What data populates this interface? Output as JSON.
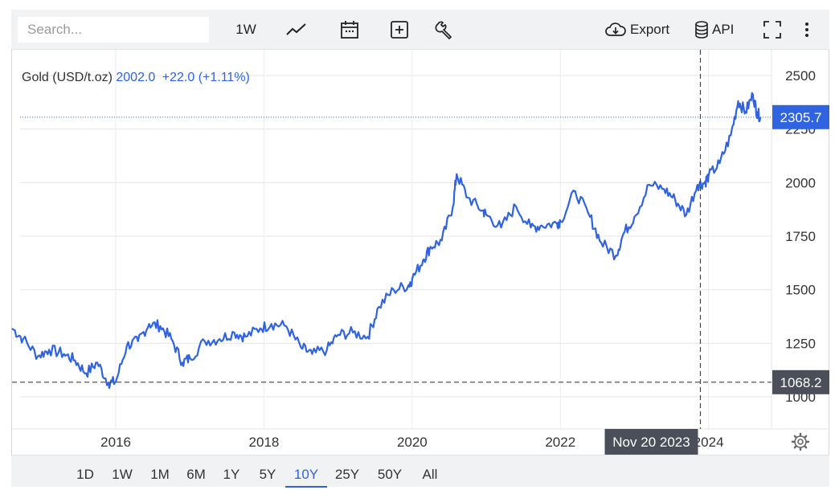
{
  "toolbar": {
    "search_placeholder": "Search...",
    "interval_label": "1W",
    "export_label": "Export",
    "api_label": "API",
    "icons": [
      "line-chart-icon",
      "calendar-icon",
      "plus-box-icon",
      "wrench-icon",
      "cloud-download-icon",
      "database-icon",
      "fullscreen-icon",
      "more-vertical-icon"
    ]
  },
  "legend": {
    "name": "Gold (USD/t.oz)",
    "value": "2002.0",
    "change": "+22.0 (+1.11%)"
  },
  "crosshair": {
    "date_label": "Nov 20 2023",
    "price_label": "1068.2"
  },
  "last_price_label": "2305.7",
  "range_buttons": [
    "1D",
    "1W",
    "1M",
    "6M",
    "1Y",
    "5Y",
    "10Y",
    "25Y",
    "50Y",
    "All"
  ],
  "active_range": "10Y",
  "colors": {
    "line": "#2f63e0",
    "accent": "#2f63e0",
    "crosshair_label_bg": "#4a4f59"
  },
  "chart_data": {
    "type": "line",
    "title": "Gold (USD/t.oz)",
    "xlabel": "",
    "ylabel": "",
    "x_ticks": [
      "2016",
      "2018",
      "2020",
      "2022",
      "2024"
    ],
    "y_ticks": [
      1000,
      1250,
      1500,
      1750,
      2000,
      2250,
      2500
    ],
    "ylim": [
      850,
      2620
    ],
    "xlim": [
      2014.6,
      2024.85
    ],
    "grid": true,
    "series": [
      {
        "name": "Gold (USD/t.oz)",
        "x": [
          2014.6,
          2014.75,
          2014.95,
          2015.1,
          2015.3,
          2015.45,
          2015.6,
          2015.75,
          2015.9,
          2016.0,
          2016.15,
          2016.3,
          2016.45,
          2016.6,
          2016.75,
          2016.9,
          2017.0,
          2017.2,
          2017.4,
          2017.6,
          2017.75,
          2017.95,
          2018.1,
          2018.3,
          2018.5,
          2018.65,
          2018.85,
          2019.0,
          2019.2,
          2019.4,
          2019.55,
          2019.75,
          2019.95,
          2020.0,
          2020.15,
          2020.25,
          2020.4,
          2020.55,
          2020.6,
          2020.75,
          2020.95,
          2021.0,
          2021.2,
          2021.4,
          2021.6,
          2021.75,
          2021.95,
          2022.0,
          2022.2,
          2022.4,
          2022.55,
          2022.75,
          2022.85,
          2023.0,
          2023.2,
          2023.4,
          2023.55,
          2023.7,
          2023.85,
          2023.95,
          2024.0,
          2024.15,
          2024.3,
          2024.4,
          2024.5,
          2024.6,
          2024.65,
          2024.7
        ],
        "values": [
          1320,
          1270,
          1190,
          1220,
          1200,
          1170,
          1110,
          1160,
          1065,
          1070,
          1240,
          1260,
          1340,
          1330,
          1270,
          1160,
          1180,
          1260,
          1270,
          1300,
          1280,
          1320,
          1340,
          1330,
          1230,
          1200,
          1220,
          1290,
          1300,
          1280,
          1420,
          1500,
          1520,
          1550,
          1640,
          1700,
          1730,
          1890,
          2040,
          1930,
          1870,
          1850,
          1790,
          1890,
          1790,
          1800,
          1810,
          1820,
          1960,
          1840,
          1720,
          1660,
          1760,
          1840,
          1990,
          1970,
          1920,
          1850,
          1990,
          2000,
          2030,
          2090,
          2220,
          2380,
          2330,
          2410,
          2330,
          2305.7
        ]
      }
    ],
    "annotations": [
      {
        "type": "crosshair",
        "x": "Nov 20 2023",
        "y": 1068.2
      },
      {
        "type": "last_price",
        "value": 2305.7
      }
    ]
  }
}
